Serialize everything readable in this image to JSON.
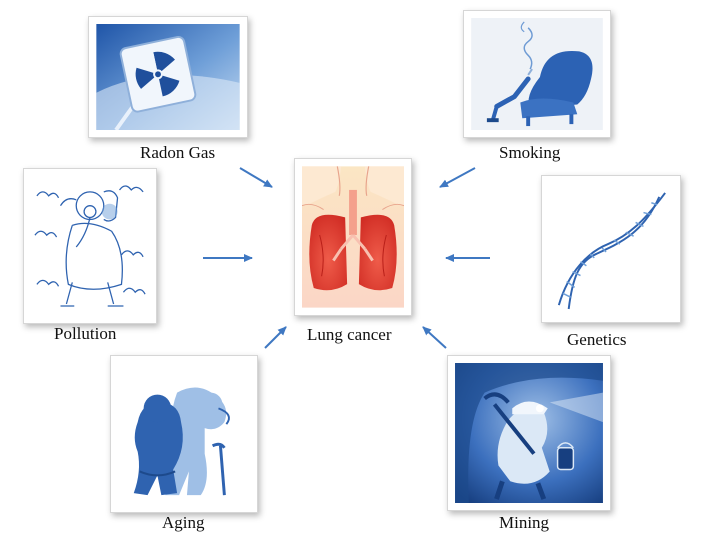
{
  "diagram": {
    "center": {
      "label": "Lung cancer",
      "icon": "lungs-icon"
    },
    "factors": [
      {
        "id": "radon",
        "label": "Radon Gas",
        "icon": "radiation-sign-icon"
      },
      {
        "id": "smoking",
        "label": "Smoking",
        "icon": "armchair-smoker-icon"
      },
      {
        "id": "pollution",
        "label": "Pollution",
        "icon": "gas-mask-cartoon-icon"
      },
      {
        "id": "genetics",
        "label": "Genetics",
        "icon": "dna-helix-icon"
      },
      {
        "id": "aging",
        "label": "Aging",
        "icon": "elderly-couple-icon"
      },
      {
        "id": "mining",
        "label": "Mining",
        "icon": "miner-icon"
      }
    ],
    "colors": {
      "image_blue": "#2f63b0",
      "arrow": "#3f78c2",
      "lung_red": "#e0302a",
      "skin": "#fbe3cf"
    }
  }
}
